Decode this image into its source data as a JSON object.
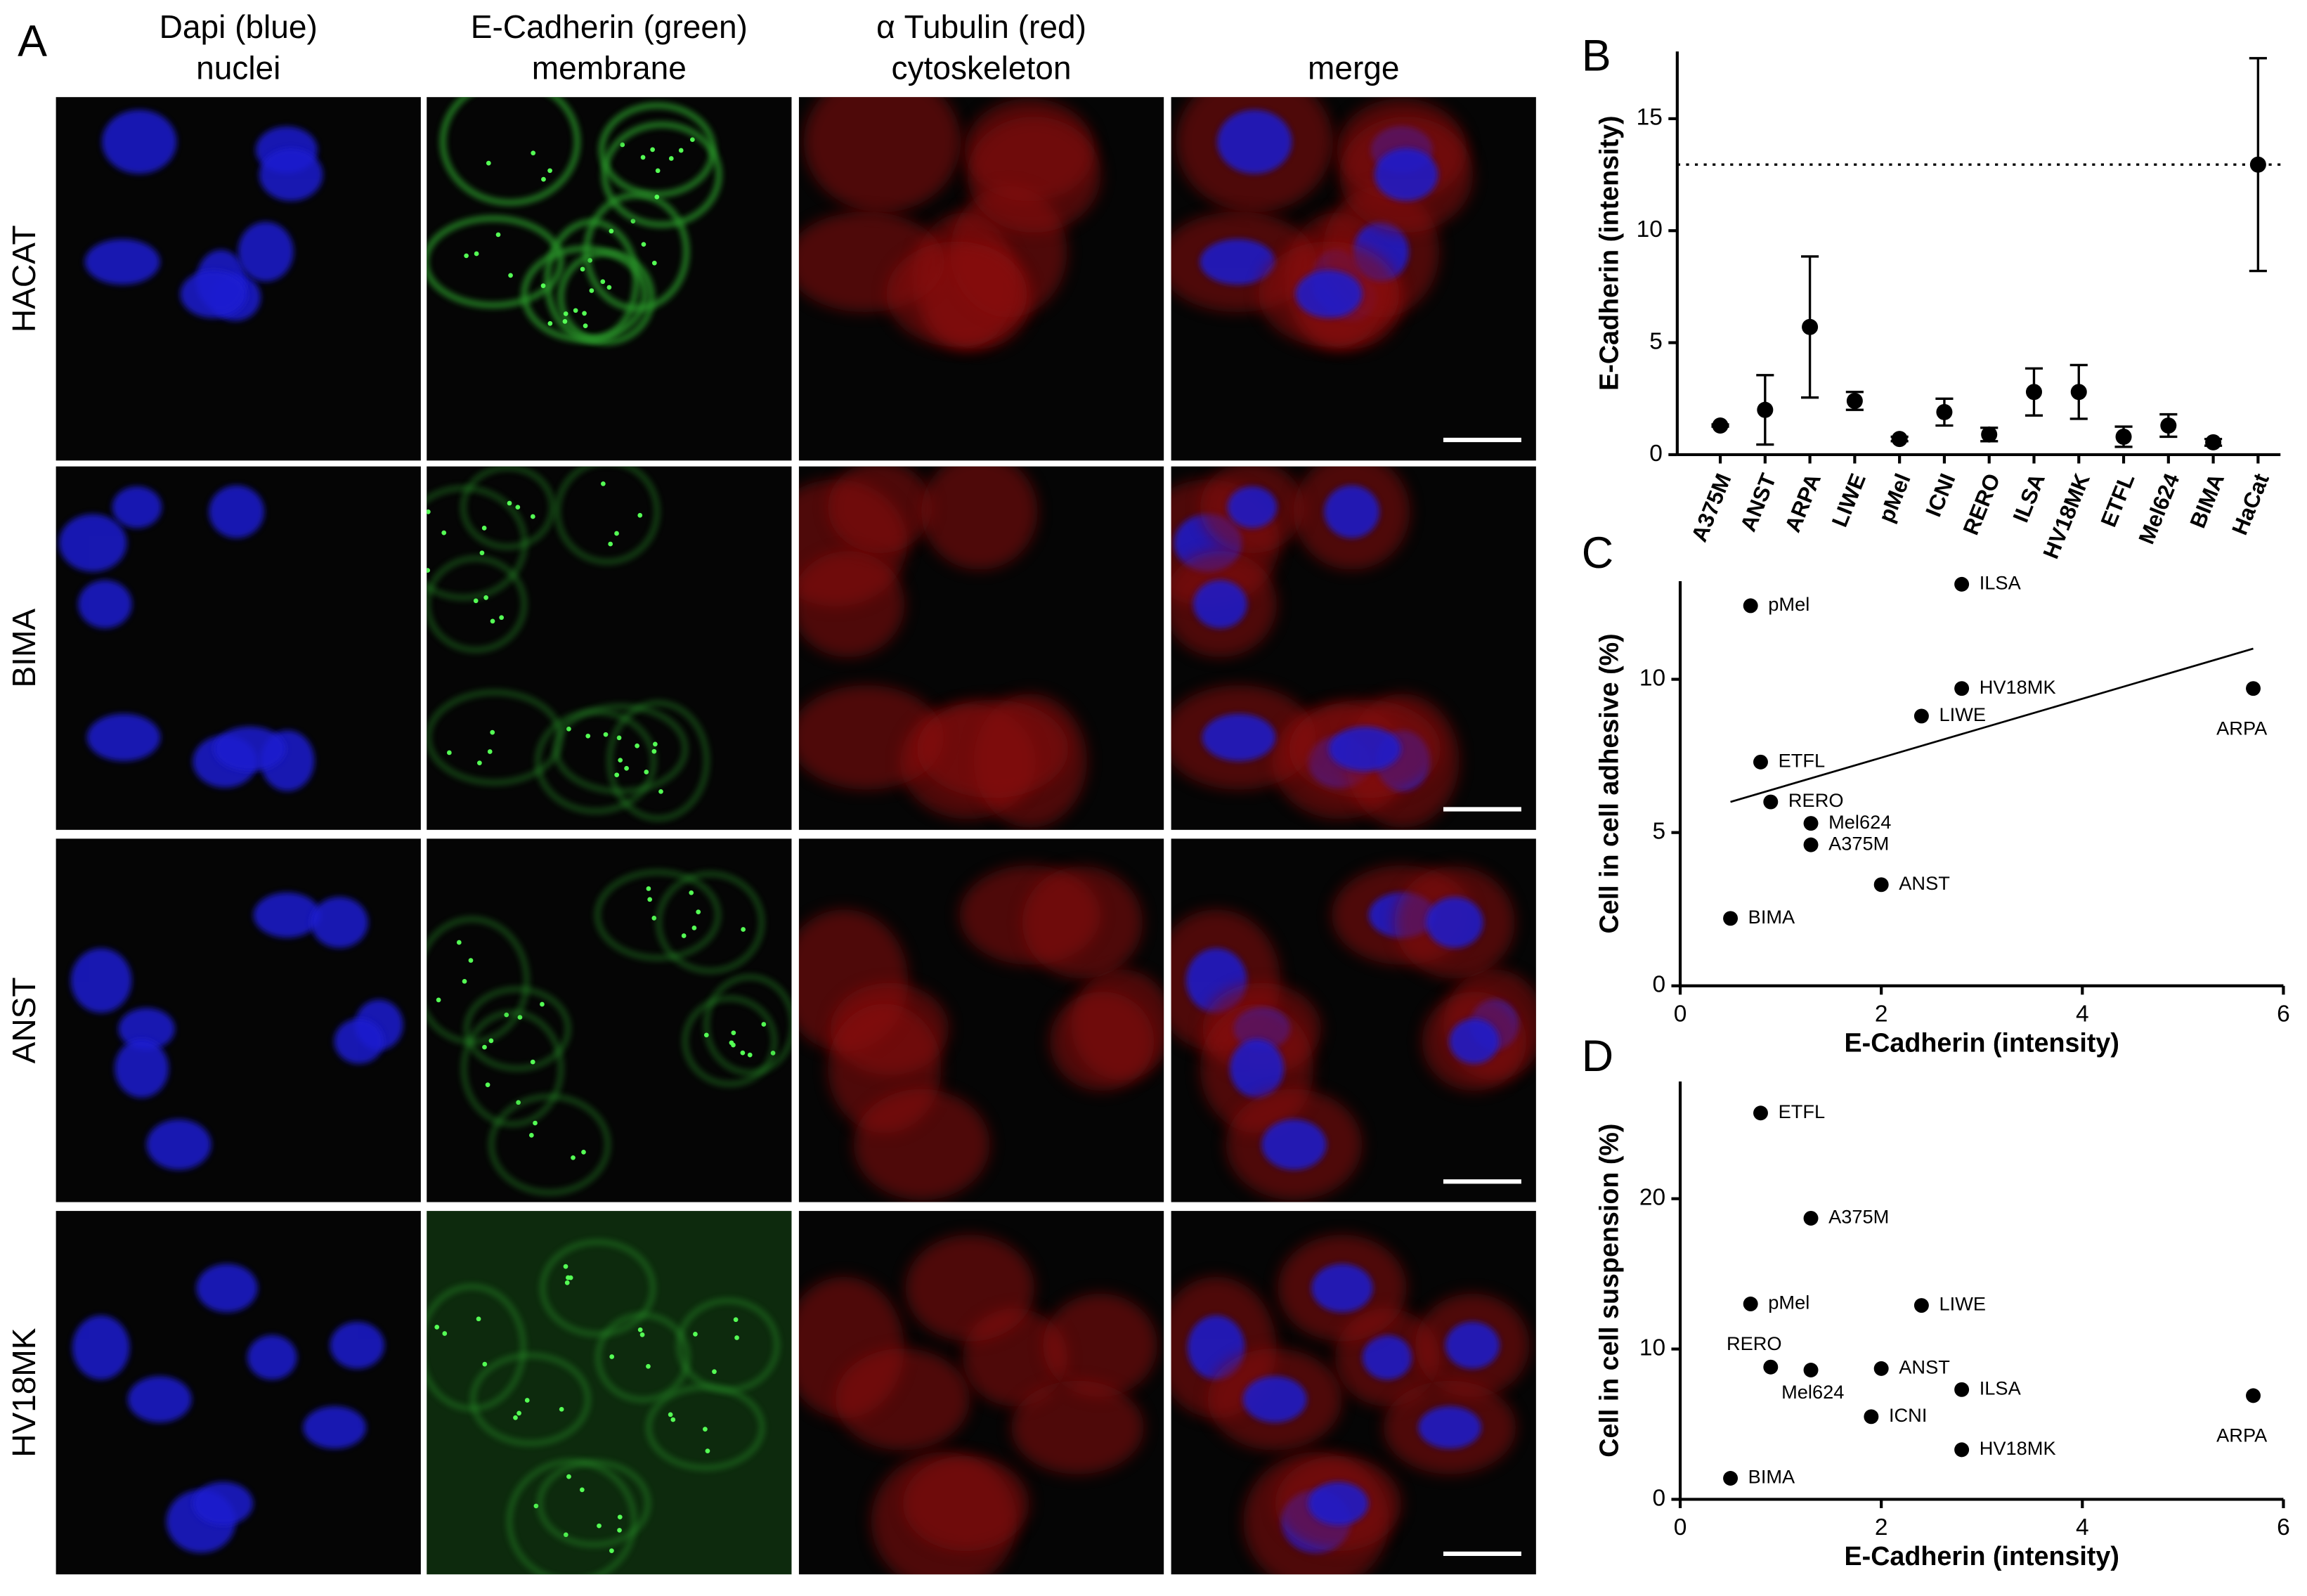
{
  "panel_a": {
    "label": "A",
    "column_headers": [
      [
        "Dapi (blue)",
        "nuclei"
      ],
      [
        "E-Cadherin (green)",
        "membrane"
      ],
      [
        "α Tubulin (red)",
        "cytoskeleton"
      ],
      [
        "merge"
      ]
    ],
    "row_labels": [
      "HACAT",
      "BIMA",
      "ANST",
      "HV18MK"
    ]
  },
  "chart_data": [
    {
      "type": "errorbar",
      "label": "B",
      "ylabel": "E-Cadherin (intensity)",
      "categories": [
        "A375M",
        "ANST",
        "ARPA",
        "LIWE",
        "pMel",
        "ICNI",
        "RERO",
        "ILSA",
        "HV18MK",
        "ETFL",
        "Mel624",
        "BIMA",
        "HaCat"
      ],
      "values": [
        1.3,
        2.0,
        5.7,
        2.4,
        0.7,
        1.9,
        0.9,
        2.8,
        2.8,
        0.8,
        1.3,
        0.55,
        12.95
      ],
      "errors": [
        0.05,
        1.55,
        3.15,
        0.4,
        0.1,
        0.6,
        0.3,
        1.05,
        1.2,
        0.45,
        0.5,
        0.15,
        4.75
      ],
      "hline": 12.95,
      "color": "#000000",
      "ylim": [
        0,
        18
      ],
      "yticks": [
        0,
        5,
        10,
        15
      ]
    },
    {
      "type": "scatter",
      "label": "C",
      "xlabel": "E-Cadherin (intensity)",
      "ylabel": "Cell in cell adhesive (%)",
      "labels": [
        "pMel",
        "ILSA",
        "HV18MK",
        "ARPA",
        "LIWE",
        "ETFL",
        "RERO",
        "Mel624",
        "A375M",
        "ANST",
        "BIMA"
      ],
      "x": [
        0.7,
        2.8,
        2.8,
        5.7,
        2.4,
        0.8,
        0.9,
        1.3,
        1.3,
        2.0,
        0.5
      ],
      "values": [
        12.4,
        13.1,
        9.7,
        9.7,
        8.8,
        7.3,
        6.0,
        5.3,
        4.6,
        3.3,
        2.2
      ],
      "trendline": {
        "x": [
          0.5,
          5.7
        ],
        "y": [
          6.0,
          11.0
        ]
      },
      "color": "#000000",
      "xlim": [
        0,
        6
      ],
      "xticks": [
        0,
        2,
        4,
        6
      ],
      "ylim": [
        0,
        13.2
      ],
      "yticks": [
        0,
        5,
        10
      ]
    },
    {
      "type": "scatter",
      "label": "D",
      "xlabel": "E-Cadherin (intensity)",
      "ylabel": "Cell in cell suspension (%)",
      "labels": [
        "ETFL",
        "A375M",
        "pMel",
        "LIWE",
        "RERO",
        "Mel624",
        "ANST",
        "ILSA",
        "ICNI",
        "HV18MK",
        "ARPA",
        "BIMA"
      ],
      "x": [
        0.8,
        1.3,
        0.7,
        2.4,
        0.9,
        1.3,
        2.0,
        2.8,
        1.9,
        2.8,
        5.7,
        0.5
      ],
      "values": [
        25.7,
        18.7,
        13.0,
        12.9,
        8.8,
        8.6,
        8.7,
        7.3,
        5.5,
        3.3,
        6.9,
        1.4
      ],
      "color": "#000000",
      "xlim": [
        0,
        6
      ],
      "xticks": [
        0,
        2,
        4,
        6
      ],
      "ylim": [
        0,
        27.8
      ],
      "yticks": [
        0,
        10,
        20
      ]
    }
  ]
}
